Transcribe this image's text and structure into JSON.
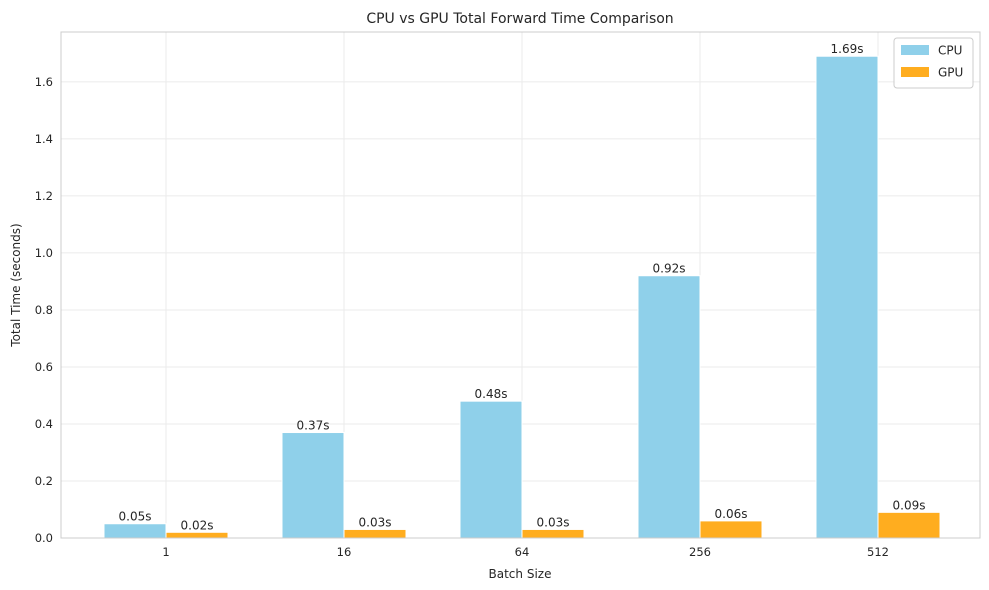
{
  "chart_data": {
    "type": "bar",
    "title": "CPU vs GPU Total Forward Time Comparison",
    "xlabel": "Batch Size",
    "ylabel": "Total Time (seconds)",
    "categories": [
      "1",
      "16",
      "64",
      "256",
      "512"
    ],
    "series": [
      {
        "name": "CPU",
        "color": "#8fd0ea",
        "values": [
          0.05,
          0.37,
          0.48,
          0.92,
          1.69
        ],
        "value_labels": [
          "0.05s",
          "0.37s",
          "0.48s",
          "0.92s",
          "1.69s"
        ]
      },
      {
        "name": "GPU",
        "color": "#ffad1f",
        "values": [
          0.02,
          0.03,
          0.03,
          0.06,
          0.09
        ],
        "value_labels": [
          "0.02s",
          "0.03s",
          "0.03s",
          "0.06s",
          "0.09s"
        ]
      }
    ],
    "ylim": [
      0,
      1.775
    ],
    "yticks": [
      0.0,
      0.2,
      0.4,
      0.6,
      0.8,
      1.0,
      1.2,
      1.4,
      1.6
    ],
    "ytick_labels": [
      "0.0",
      "0.2",
      "0.4",
      "0.6",
      "0.8",
      "1.0",
      "1.2",
      "1.4",
      "1.6"
    ],
    "grid": true,
    "legend_position": "top-right"
  }
}
